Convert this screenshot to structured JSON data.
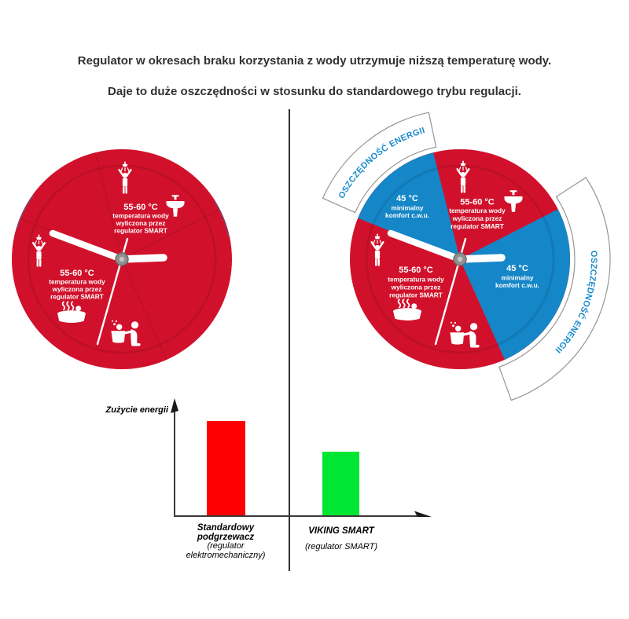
{
  "header": {
    "line1": "Regulator w okresach braku korzystania z wody utrzymuje niższą temperaturę wody.",
    "line2": "Daje to duże oszczędności w stosunku do standardowego trybu regulacji."
  },
  "clock_labels": {
    "smart": {
      "temp": "55-60 °C",
      "line1": "temperatura wody",
      "line2": "wyliczona przez",
      "line3": "regulator SMART"
    },
    "comfort": {
      "temp": "45 °C",
      "line1": "minimalny",
      "line2": "komfort c.w.u."
    },
    "savings_band": "OSZCZĘDNOŚĆ ENERGII"
  },
  "icons": {
    "shower-icon": "white pictogram: person with raised arms under shower head",
    "sink-icon": "white pictogram: pedestal washbasin with tap",
    "jacuzzi-icon": "white pictogram: hot tub with steam and bather head",
    "child-bath-icon": "white pictogram: parent washing child in small tub",
    "clock-hands": "white analog clock hands (minute to 10, hour to 3, thin second hand down-left)",
    "hub-icon": "gray clock center cap"
  },
  "colors": {
    "clock_red": "#d1112b",
    "clock_red_dark": "#a90c22",
    "clock_blue": "#1586c7",
    "band_text_blue": "#1a8ccd",
    "band_border": "#969696",
    "axis": "#3a3a3a",
    "divider": "#2e2e2e",
    "hand_white": "#ffffff",
    "hub_gray": "#8f8f8f"
  },
  "chart_data": {
    "type": "bar",
    "title": "",
    "ylabel": "Zużycie energii",
    "xlabel": "",
    "categories": [
      "Standardowy podgrzewacz",
      "VIKING SMART"
    ],
    "category_subs": [
      "(regulator elektromechaniczny)",
      "(regulator SMART)"
    ],
    "values": [
      100,
      68
    ],
    "value_unit": "relative energy use, % of standard heater (no numeric axis shown)",
    "colors": [
      "#ff0000",
      "#00e632"
    ],
    "ylim": [
      0,
      110
    ],
    "grid": false,
    "legend": false,
    "axis_arrows": true
  }
}
